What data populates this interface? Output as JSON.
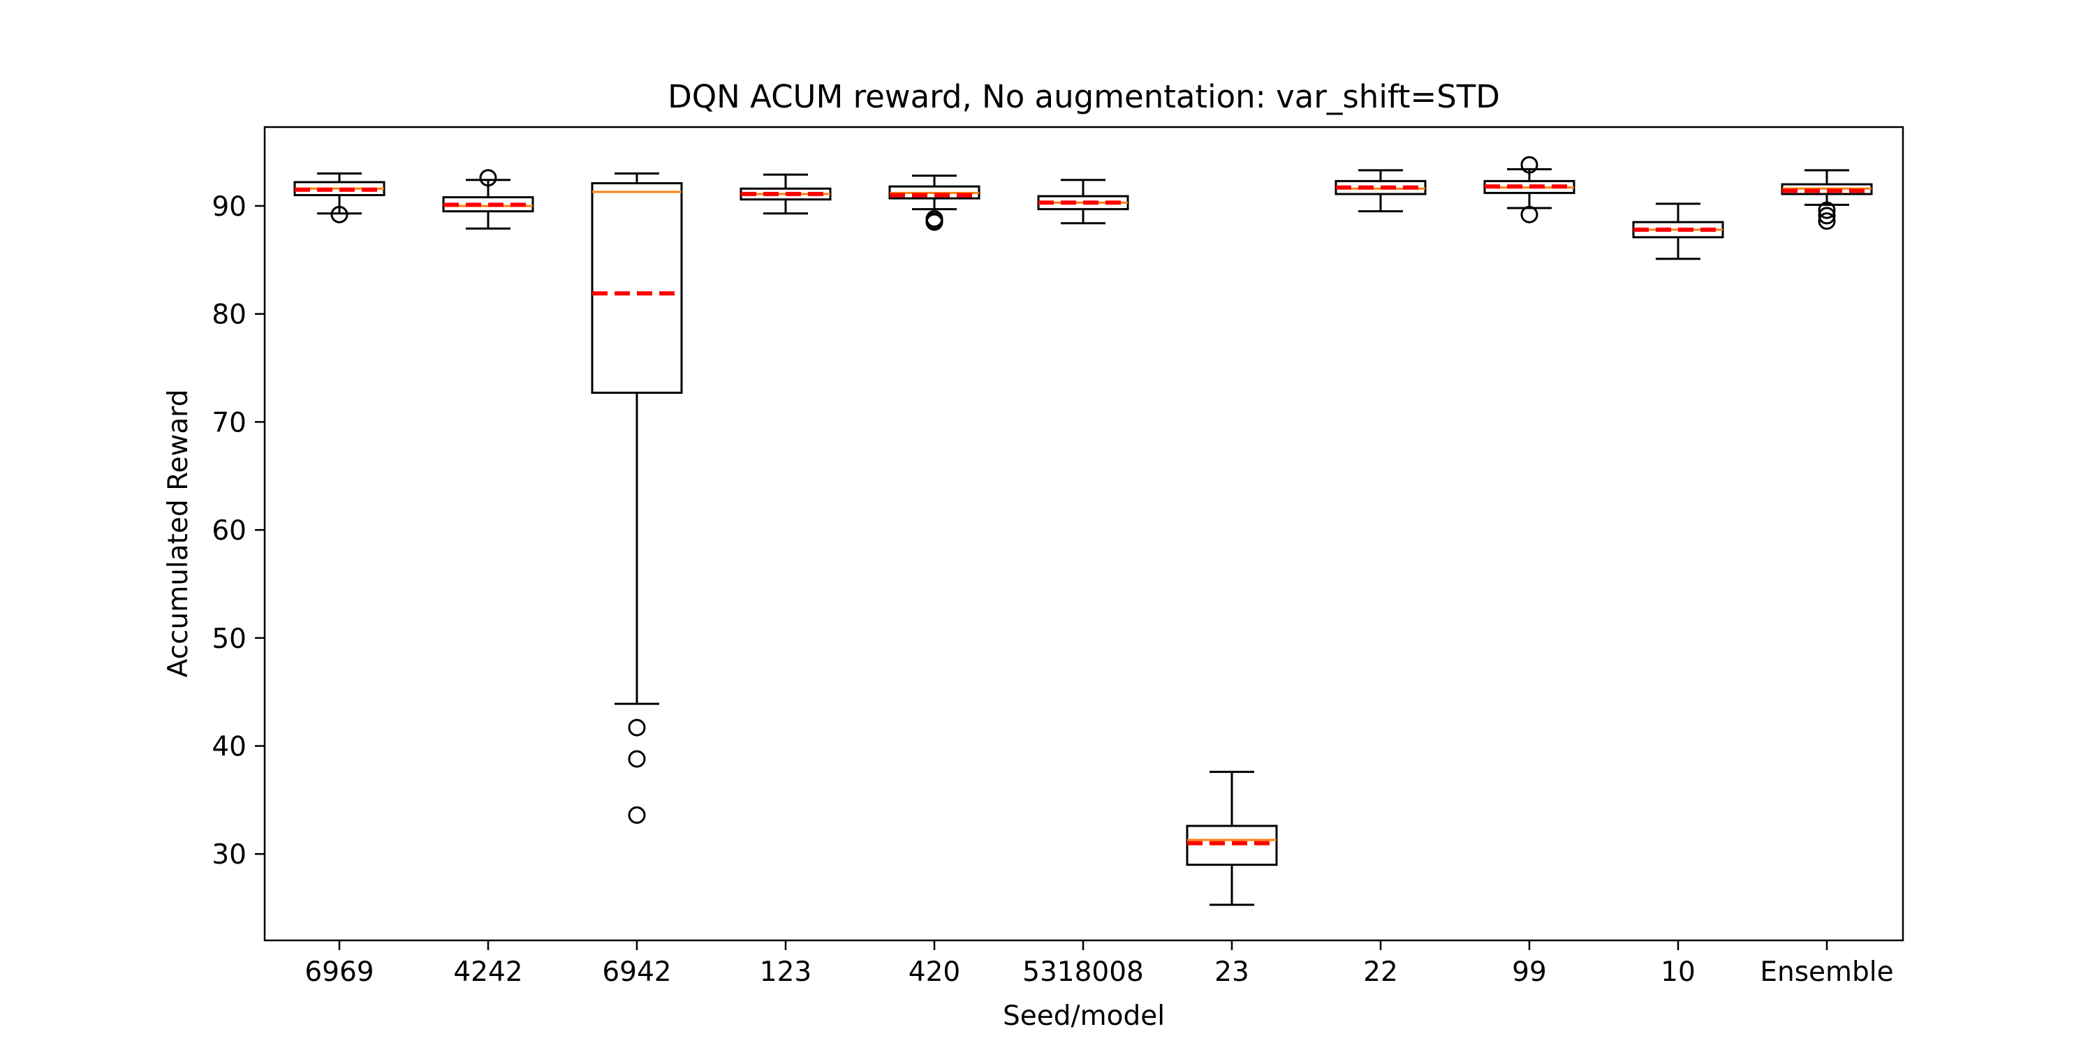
{
  "chart_data": {
    "type": "box",
    "title": "DQN ACUM reward, No augmentation: var_shift=STD",
    "xlabel": "Seed/model",
    "ylabel": "Accumulated Reward",
    "ylim": [
      22.0,
      97.3
    ],
    "yticks": [
      30,
      40,
      50,
      60,
      70,
      80,
      90
    ],
    "grid": false,
    "categories": [
      "6969",
      "4242",
      "6942",
      "123",
      "420",
      "5318008",
      "23",
      "22",
      "99",
      "10",
      "Ensemble"
    ],
    "boxes": [
      {
        "whisker_low": 89.3,
        "q1": 91.0,
        "median": 91.6,
        "mean": 91.5,
        "q3": 92.2,
        "whisker_high": 93.0,
        "outliers": [
          89.2
        ]
      },
      {
        "whisker_low": 87.9,
        "q1": 89.5,
        "median": 90.0,
        "mean": 90.1,
        "q3": 90.8,
        "whisker_high": 92.4,
        "outliers": [
          92.6
        ]
      },
      {
        "whisker_low": 43.9,
        "q1": 72.7,
        "median": 91.3,
        "mean": 81.9,
        "q3": 92.1,
        "whisker_high": 93.0,
        "outliers": [
          41.7,
          38.8,
          33.6
        ]
      },
      {
        "whisker_low": 89.3,
        "q1": 90.6,
        "median": 91.1,
        "mean": 91.1,
        "q3": 91.6,
        "whisker_high": 92.9,
        "outliers": []
      },
      {
        "whisker_low": 89.7,
        "q1": 90.7,
        "median": 91.2,
        "mean": 91.0,
        "q3": 91.8,
        "whisker_high": 92.8,
        "outliers": [
          88.8,
          88.5,
          88.6
        ]
      },
      {
        "whisker_low": 88.4,
        "q1": 89.7,
        "median": 90.3,
        "mean": 90.3,
        "q3": 90.9,
        "whisker_high": 92.4,
        "outliers": []
      },
      {
        "whisker_low": 25.3,
        "q1": 29.0,
        "median": 31.3,
        "mean": 31.0,
        "q3": 32.6,
        "whisker_high": 37.6,
        "outliers": []
      },
      {
        "whisker_low": 89.5,
        "q1": 91.1,
        "median": 91.6,
        "mean": 91.7,
        "q3": 92.3,
        "whisker_high": 93.3,
        "outliers": []
      },
      {
        "whisker_low": 89.8,
        "q1": 91.2,
        "median": 91.7,
        "mean": 91.8,
        "q3": 92.3,
        "whisker_high": 93.4,
        "outliers": [
          93.8,
          89.2
        ]
      },
      {
        "whisker_low": 85.1,
        "q1": 87.1,
        "median": 87.8,
        "mean": 87.8,
        "q3": 88.5,
        "whisker_high": 90.2,
        "outliers": []
      },
      {
        "whisker_low": 90.1,
        "q1": 91.1,
        "median": 91.6,
        "mean": 91.4,
        "q3": 92.0,
        "whisker_high": 93.3,
        "outliers": [
          89.6,
          89.1,
          88.6
        ]
      }
    ],
    "colors": {
      "box": "#000000",
      "median": "#ff7f0e",
      "mean": "#ff0000",
      "background": "#ffffff"
    },
    "mean_line_style": "dashed"
  }
}
